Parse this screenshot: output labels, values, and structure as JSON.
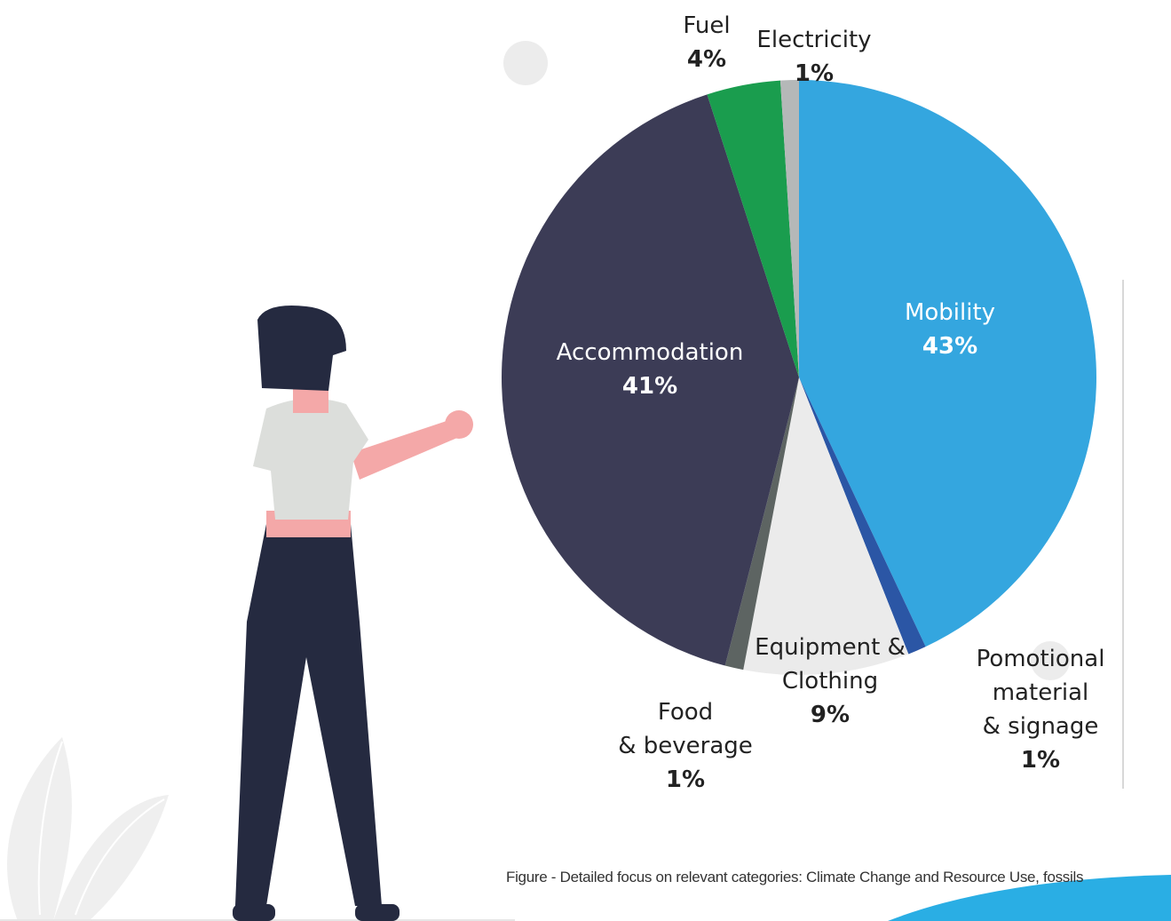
{
  "chart_data": {
    "type": "pie",
    "categories": [
      "Mobility",
      "Pomotional material\n& signage",
      "Equipment &\nClothing",
      "Food\n& beverage",
      "Accommodation",
      "Fuel",
      "Electricity"
    ],
    "values": [
      43,
      1,
      9,
      1,
      41,
      4,
      1
    ],
    "value_labels": [
      "43%",
      "1%",
      "9%",
      "1%",
      "41%",
      "4%",
      "1%"
    ],
    "colors": [
      "#34a6df",
      "#2b56a5",
      "#ebebeb",
      "#5d6462",
      "#3c3c56",
      "#1a9d4e",
      "#b5b8b8"
    ],
    "caption": "Figure - Detailed focus on relevant categories: Climate Change and Resource Use, fossils"
  }
}
